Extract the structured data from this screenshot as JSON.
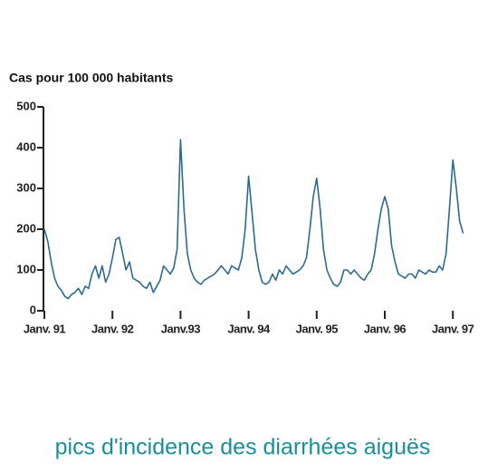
{
  "chart_data": {
    "type": "line",
    "y_label": "Cas pour 100 000 habitants",
    "caption": "pics d'incidence des diarrhées aiguës",
    "color": "#2b6b8f",
    "x": [
      1991.0,
      1991.05,
      1991.1,
      1991.15,
      1991.2,
      1991.25,
      1991.3,
      1991.35,
      1991.4,
      1991.45,
      1991.5,
      1991.55,
      1991.6,
      1991.65,
      1991.7,
      1991.75,
      1991.8,
      1991.85,
      1991.9,
      1991.95,
      1992.0,
      1992.05,
      1992.1,
      1992.15,
      1992.2,
      1992.25,
      1992.3,
      1992.35,
      1992.4,
      1992.45,
      1992.5,
      1992.55,
      1992.6,
      1992.65,
      1992.7,
      1992.75,
      1992.8,
      1992.85,
      1992.9,
      1992.95,
      1993.0,
      1993.05,
      1993.1,
      1993.15,
      1993.2,
      1993.25,
      1993.3,
      1993.35,
      1993.4,
      1993.45,
      1993.5,
      1993.55,
      1993.6,
      1993.65,
      1993.7,
      1993.75,
      1993.8,
      1993.85,
      1993.9,
      1993.95,
      1994.0,
      1994.05,
      1994.1,
      1994.15,
      1994.2,
      1994.25,
      1994.3,
      1994.35,
      1994.4,
      1994.45,
      1994.5,
      1994.55,
      1994.6,
      1994.65,
      1994.7,
      1994.75,
      1994.8,
      1994.85,
      1994.9,
      1994.95,
      1995.0,
      1995.05,
      1995.1,
      1995.15,
      1995.2,
      1995.25,
      1995.3,
      1995.35,
      1995.4,
      1995.45,
      1995.5,
      1995.55,
      1995.6,
      1995.65,
      1995.7,
      1995.75,
      1995.8,
      1995.85,
      1995.9,
      1995.95,
      1996.0,
      1996.05,
      1996.1,
      1996.15,
      1996.2,
      1996.25,
      1996.3,
      1996.35,
      1996.4,
      1996.45,
      1996.5,
      1996.55,
      1996.6,
      1996.65,
      1996.7,
      1996.75,
      1996.8,
      1996.85,
      1996.9,
      1996.95,
      1997.0,
      1997.05,
      1997.1,
      1997.15
    ],
    "values": [
      200,
      170,
      120,
      80,
      60,
      50,
      35,
      30,
      40,
      45,
      55,
      40,
      60,
      55,
      90,
      110,
      80,
      110,
      70,
      90,
      130,
      175,
      180,
      140,
      100,
      120,
      80,
      75,
      70,
      60,
      55,
      70,
      45,
      60,
      75,
      110,
      100,
      90,
      105,
      150,
      420,
      250,
      140,
      100,
      80,
      70,
      65,
      75,
      80,
      85,
      90,
      100,
      110,
      100,
      90,
      110,
      105,
      100,
      130,
      200,
      330,
      240,
      150,
      100,
      70,
      65,
      70,
      90,
      75,
      100,
      90,
      110,
      100,
      90,
      95,
      100,
      110,
      130,
      200,
      280,
      325,
      250,
      150,
      100,
      80,
      65,
      60,
      70,
      100,
      100,
      90,
      100,
      90,
      80,
      75,
      90,
      100,
      140,
      200,
      250,
      280,
      250,
      160,
      120,
      90,
      85,
      80,
      90,
      90,
      80,
      100,
      95,
      90,
      100,
      95,
      95,
      110,
      100,
      140,
      250,
      370,
      300,
      220,
      190
    ],
    "xlim": [
      1991,
      1997.2
    ],
    "ylim": [
      0,
      500
    ],
    "yticks": [
      0,
      100,
      200,
      300,
      400,
      500
    ],
    "xticks": [
      {
        "value": 1991,
        "label": "Janv. 91"
      },
      {
        "value": 1992,
        "label": "Janv. 92"
      },
      {
        "value": 1993,
        "label": "Janv.93"
      },
      {
        "value": 1994,
        "label": "Janv. 94"
      },
      {
        "value": 1995,
        "label": "Janv. 95"
      },
      {
        "value": 1996,
        "label": "Janv. 96"
      },
      {
        "value": 1997,
        "label": "Janv. 97"
      }
    ]
  }
}
